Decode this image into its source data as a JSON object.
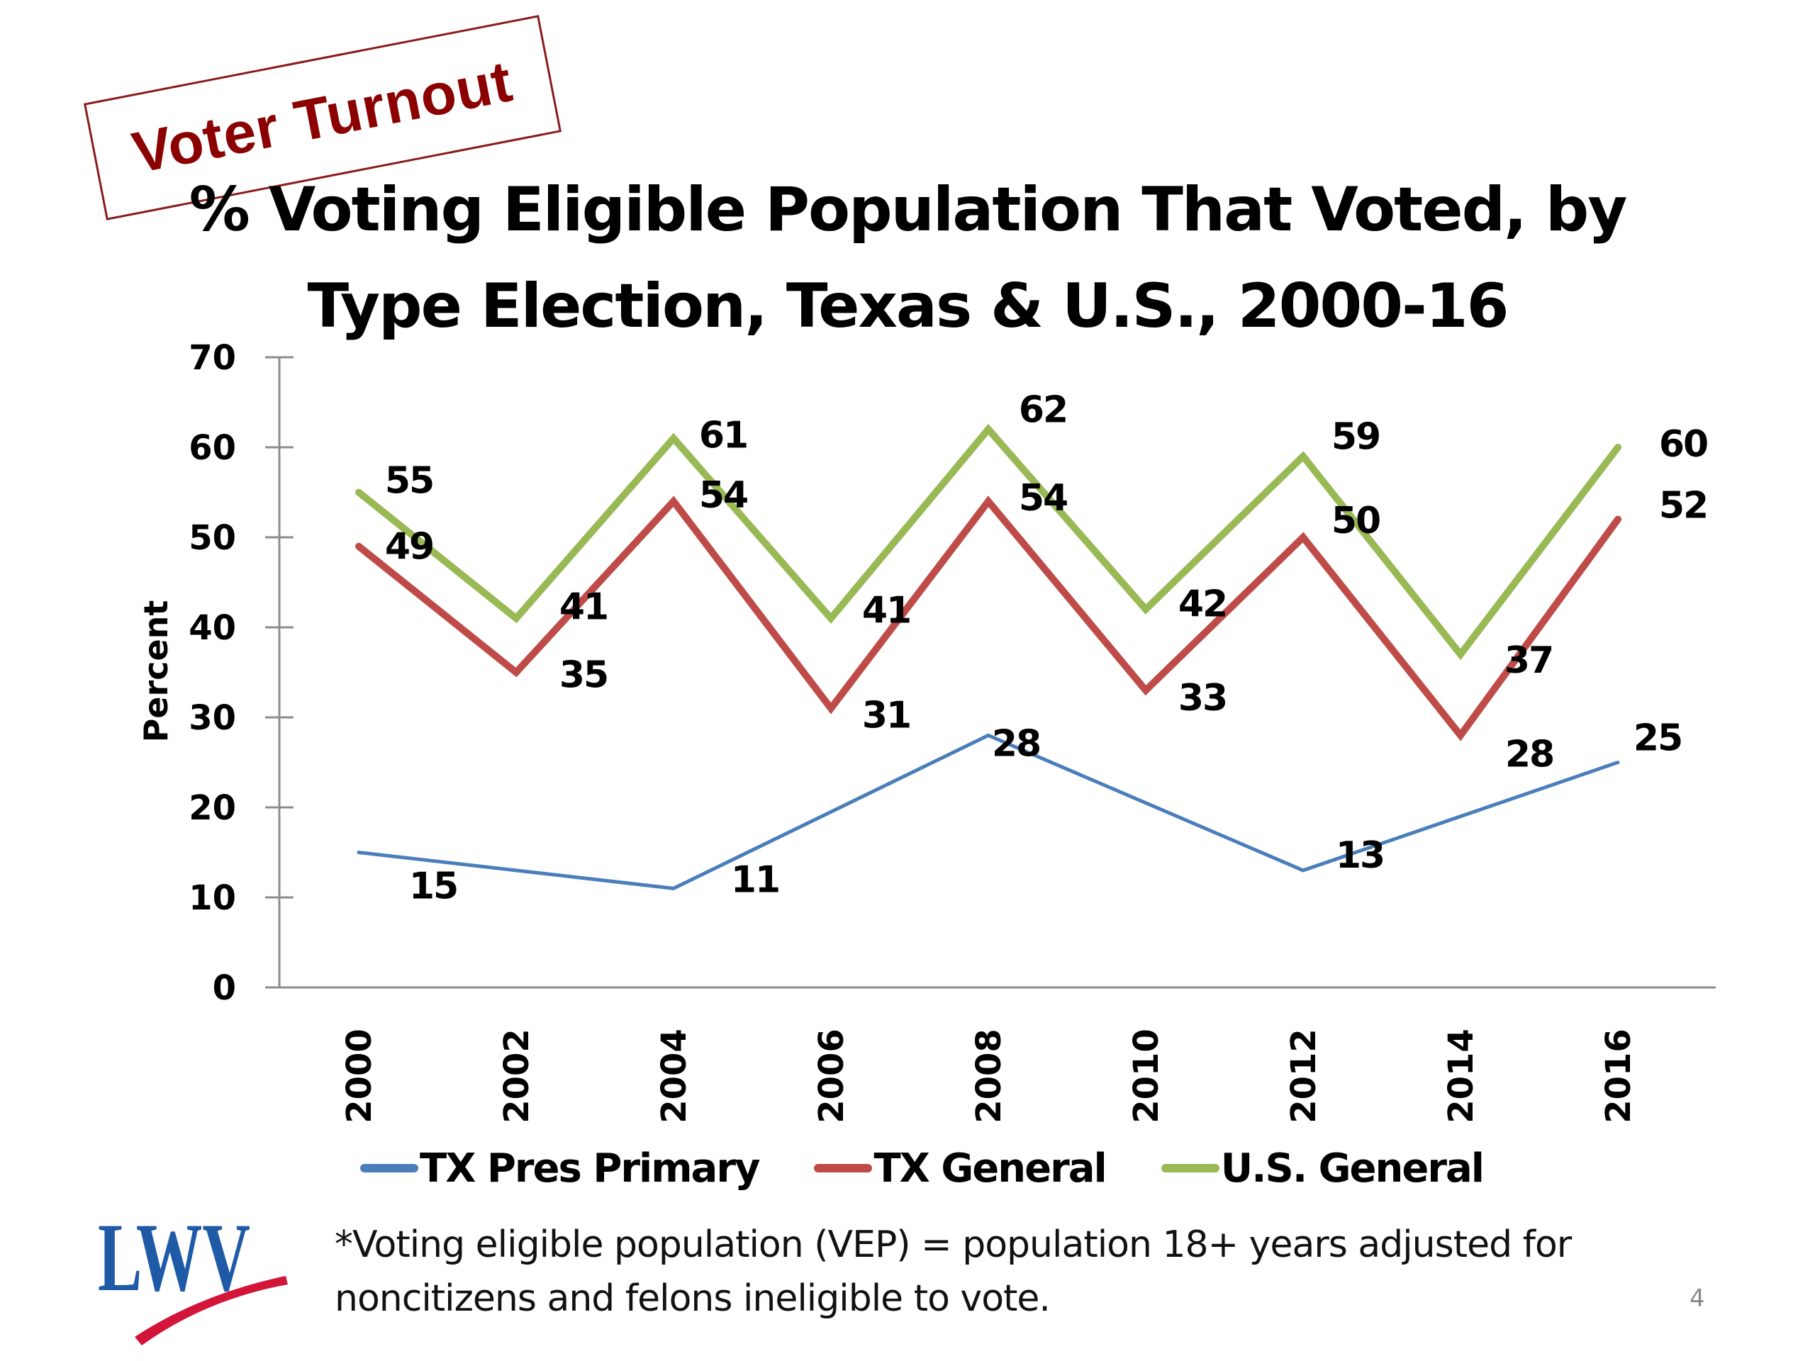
{
  "stamp": {
    "text": "Voter Turnout",
    "color": "#8b0000"
  },
  "title": {
    "line1": "% Voting Eligible Population That Voted, by",
    "line2": "Type Election, Texas & U.S., 2000-16"
  },
  "chart_data": {
    "type": "line",
    "title": "% Voting Eligible Population That Voted, by Type Election, Texas & U.S., 2000-16",
    "xlabel": "",
    "ylabel": "Percent",
    "ylim": [
      0,
      70
    ],
    "yticks": [
      0,
      10,
      20,
      30,
      40,
      50,
      60,
      70
    ],
    "grid": false,
    "legend_position": "bottom",
    "categories": [
      "2000",
      "2002",
      "2004",
      "2006",
      "2008",
      "2010",
      "2012",
      "2014",
      "2016"
    ],
    "series": [
      {
        "name": "TX Pres Primary",
        "color": "#4a7ebb",
        "values": [
          15,
          null,
          11,
          null,
          28,
          null,
          13,
          null,
          25
        ]
      },
      {
        "name": "TX General",
        "color": "#be4b48",
        "values": [
          49,
          35,
          54,
          31,
          54,
          33,
          50,
          28,
          52
        ]
      },
      {
        "name": "U.S. General",
        "color": "#98b954",
        "values": [
          55,
          41,
          61,
          41,
          62,
          42,
          59,
          37,
          60
        ]
      }
    ]
  },
  "footnote": {
    "line1": "*Voting eligible population (VEP) = population 18+ years adjusted for",
    "line2": "noncitizens and felons ineligible to vote."
  },
  "logo": {
    "text": "LWV",
    "text_color": "#1f5aa6",
    "swoosh_color": "#d4153a"
  },
  "page_number": "4"
}
